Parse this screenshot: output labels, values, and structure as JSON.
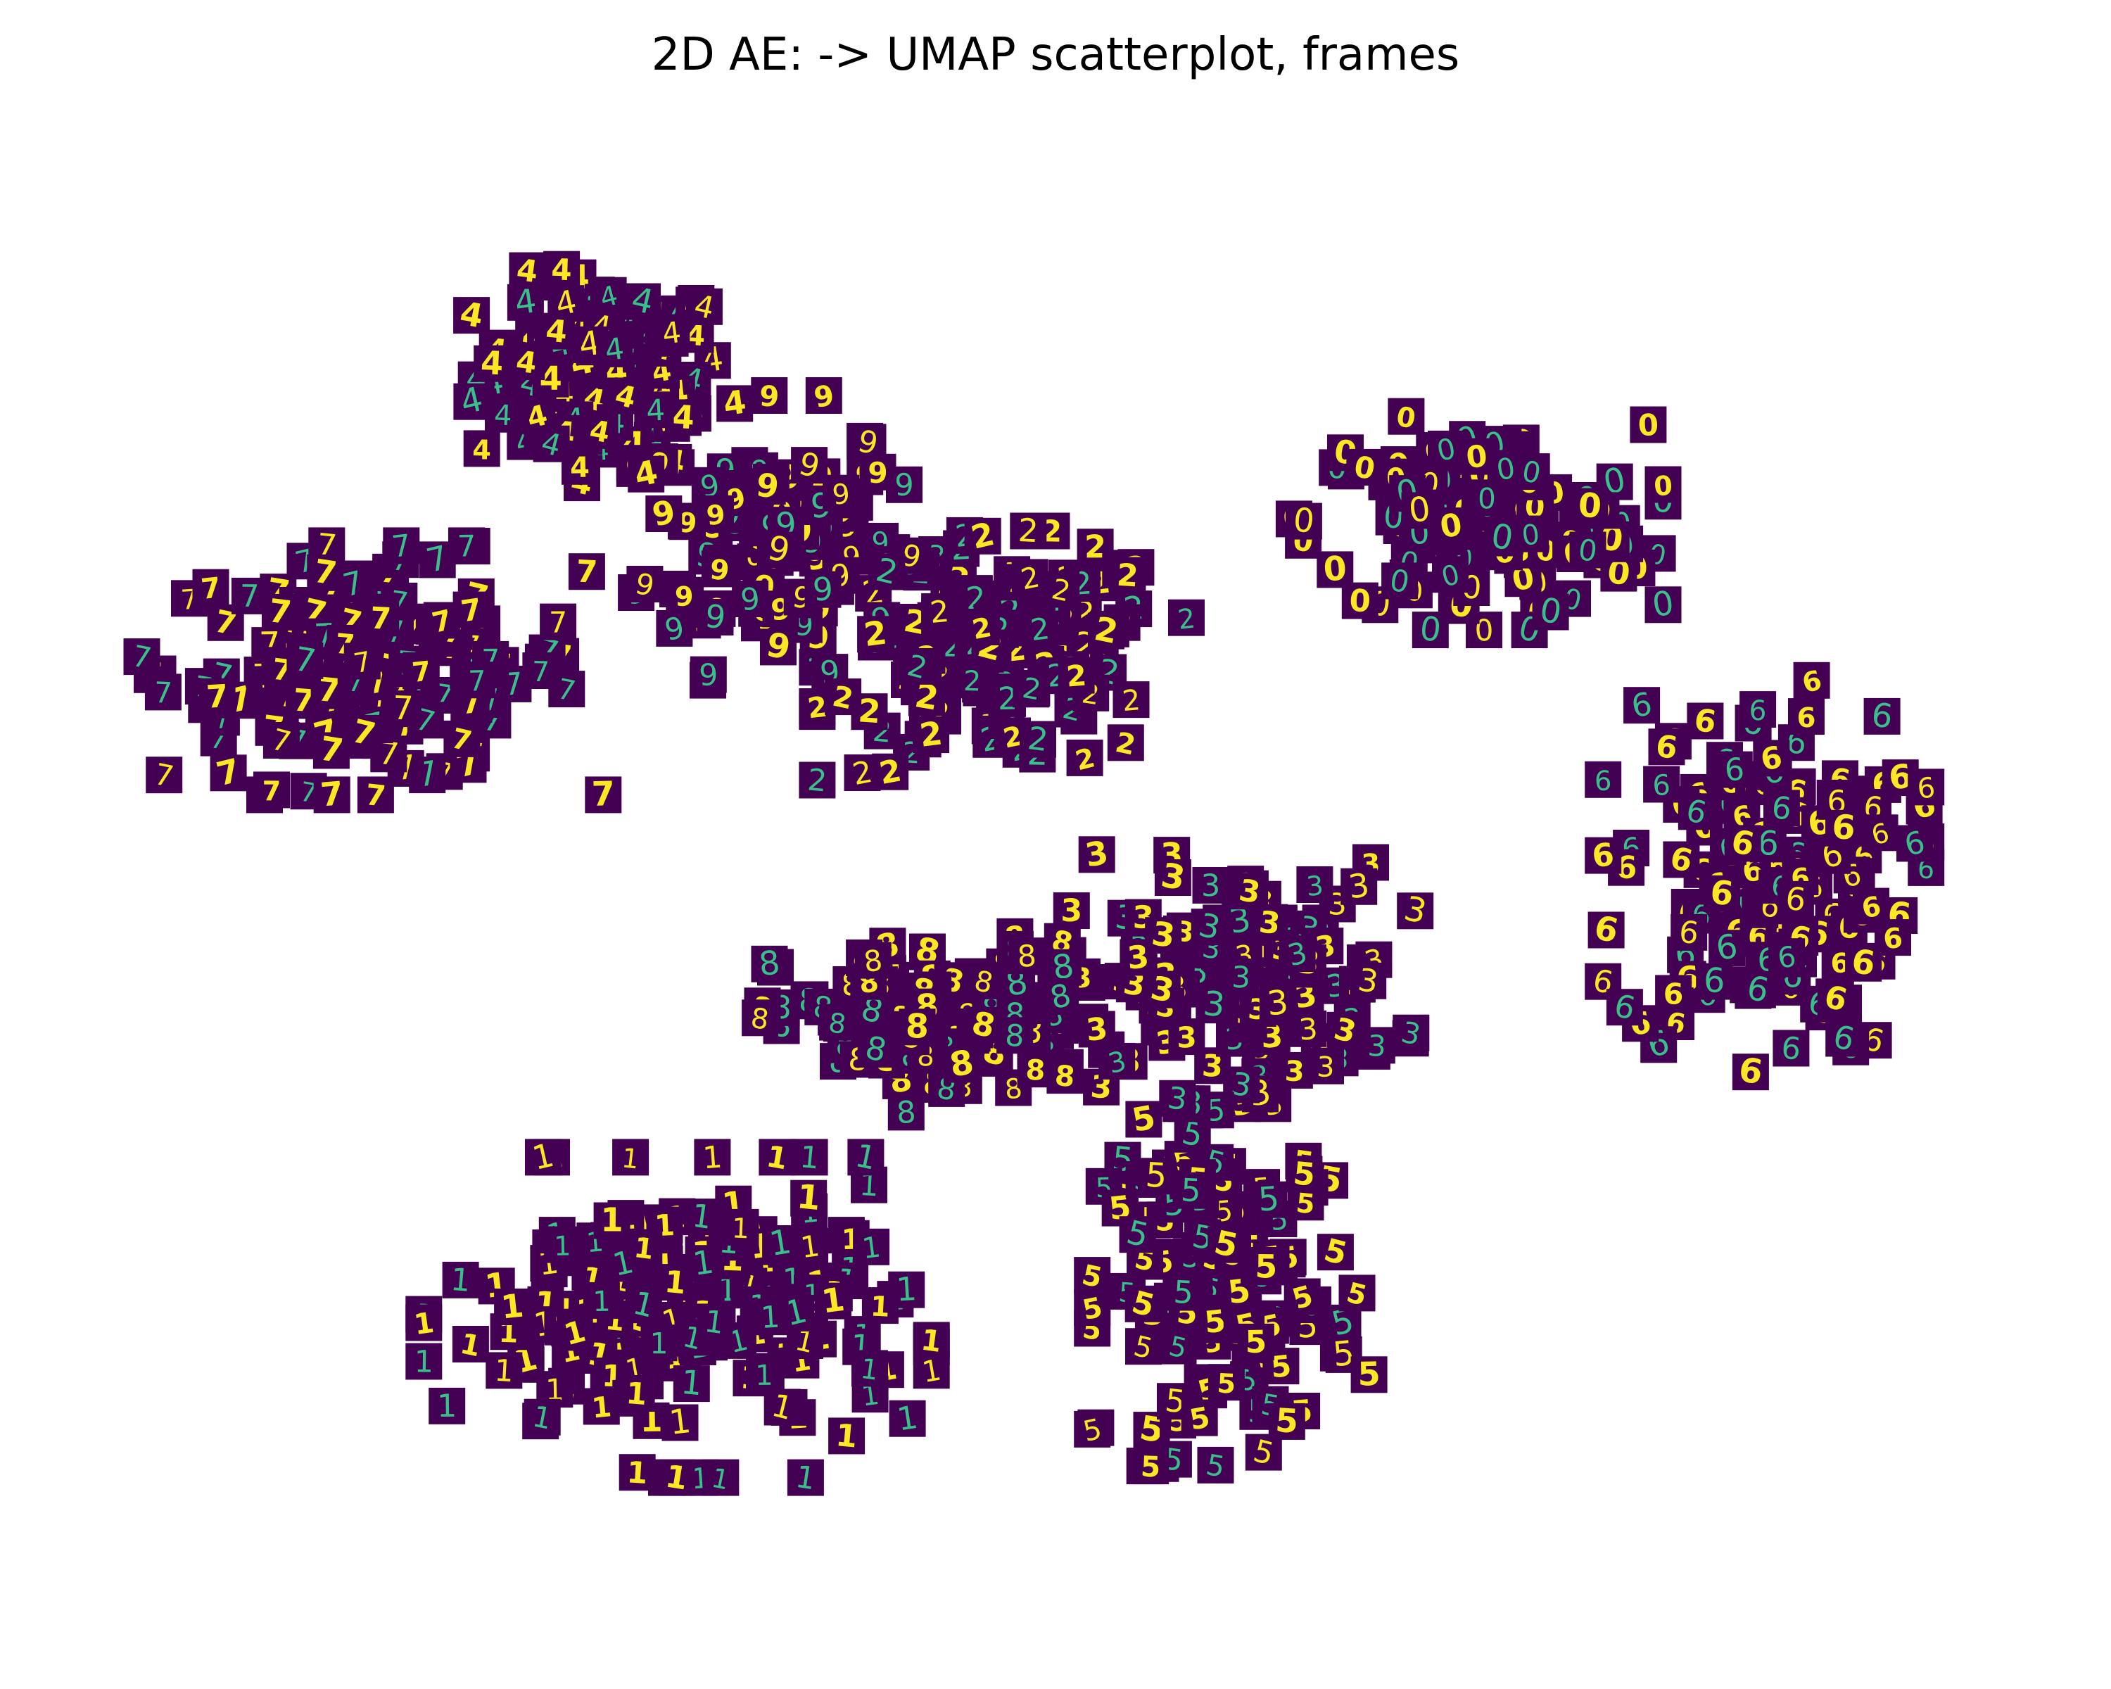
{
  "chart_data": {
    "type": "scatter",
    "title": "2D AE: -> UMAP scatterplot, frames",
    "xlabel": "",
    "ylabel": "",
    "axes_visible": false,
    "grid": false,
    "legend": "none",
    "marker": "digit-image-thumbnail",
    "thumbnail_background_color": "#440154",
    "thumbnail_stroke_color": "#fde725",
    "thumbnail_midtone_color": "#3bbf8a",
    "xlim": [
      0,
      100
    ],
    "ylim": [
      0,
      100
    ],
    "clusters": [
      {
        "digit": "4",
        "center": [
          26,
          84
        ],
        "spread": [
          6,
          6
        ],
        "count": 110
      },
      {
        "digit": "9",
        "center": [
          35,
          73
        ],
        "spread": [
          6,
          8
        ],
        "count": 120
      },
      {
        "digit": "7",
        "center": [
          14,
          64
        ],
        "spread": [
          10,
          7
        ],
        "count": 150
      },
      {
        "digit": "2",
        "center": [
          47,
          65
        ],
        "spread": [
          8,
          7
        ],
        "count": 130
      },
      {
        "digit": "0",
        "center": [
          72,
          74
        ],
        "spread": [
          8,
          6
        ],
        "count": 140
      },
      {
        "digit": "6",
        "center": [
          87,
          50
        ],
        "spread": [
          7,
          11
        ],
        "count": 150
      },
      {
        "digit": "8",
        "center": [
          44,
          40
        ],
        "spread": [
          8,
          5
        ],
        "count": 110
      },
      {
        "digit": "3",
        "center": [
          59,
          43
        ],
        "spread": [
          8,
          7
        ],
        "count": 120
      },
      {
        "digit": "5",
        "center": [
          59,
          22
        ],
        "spread": [
          6,
          10
        ],
        "count": 130
      },
      {
        "digit": "1",
        "center": [
          30,
          20
        ],
        "spread": [
          11,
          9
        ],
        "count": 180
      }
    ]
  }
}
